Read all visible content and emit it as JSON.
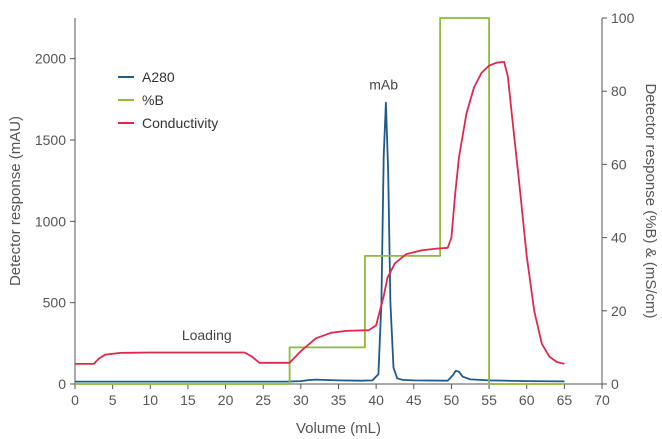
{
  "chart_data": {
    "type": "line",
    "xlabel": "Volume (mL)",
    "ylabel_left": "Detector response (mAU)",
    "ylabel_right": "Detector response (%B) & (mS/cm)",
    "xlim": [
      0,
      70
    ],
    "xticks": [
      0,
      5,
      10,
      15,
      20,
      25,
      30,
      35,
      40,
      45,
      50,
      55,
      60,
      65,
      70
    ],
    "ylim_left": [
      0,
      2250
    ],
    "yticks_left": [
      0,
      500,
      1000,
      1500,
      2000
    ],
    "ylim_right": [
      0,
      100
    ],
    "yticks_right": [
      0,
      20,
      40,
      60,
      80,
      100
    ],
    "grid": false,
    "legend_position": "upper-left",
    "annotations": [
      {
        "text": "Loading",
        "x": 17.5,
        "y_right": 12
      },
      {
        "text": "mAb",
        "x": 41,
        "y_left": 1810
      }
    ],
    "series": [
      {
        "name": "A280",
        "axis": "left",
        "color": "#1f5a8a",
        "points": [
          [
            0,
            15
          ],
          [
            28,
            15
          ],
          [
            30,
            18
          ],
          [
            31,
            24
          ],
          [
            32,
            27
          ],
          [
            33,
            25
          ],
          [
            35,
            22
          ],
          [
            38,
            20
          ],
          [
            39.5,
            22
          ],
          [
            40.3,
            60
          ],
          [
            40.7,
            500
          ],
          [
            41.0,
            1400
          ],
          [
            41.3,
            1730
          ],
          [
            41.6,
            1300
          ],
          [
            41.9,
            500
          ],
          [
            42.3,
            100
          ],
          [
            42.8,
            35
          ],
          [
            43.5,
            25
          ],
          [
            45,
            22
          ],
          [
            49.5,
            20
          ],
          [
            50.2,
            55
          ],
          [
            50.6,
            82
          ],
          [
            51,
            75
          ],
          [
            51.5,
            45
          ],
          [
            52.5,
            28
          ],
          [
            55,
            22
          ],
          [
            60,
            18
          ],
          [
            65,
            16
          ]
        ]
      },
      {
        "name": "%B",
        "axis": "right",
        "color": "#8cbc3a",
        "points": [
          [
            0,
            0
          ],
          [
            28.5,
            0
          ],
          [
            28.5,
            10
          ],
          [
            38.5,
            10
          ],
          [
            38.5,
            35
          ],
          [
            48.5,
            35
          ],
          [
            48.5,
            100
          ],
          [
            55,
            100
          ],
          [
            55,
            0
          ],
          [
            65,
            0
          ]
        ]
      },
      {
        "name": "Conductivity",
        "axis": "right",
        "color": "#e0284c",
        "points": [
          [
            0,
            5.5
          ],
          [
            2.5,
            5.5
          ],
          [
            3.2,
            7
          ],
          [
            4,
            8
          ],
          [
            6,
            8.5
          ],
          [
            10,
            8.6
          ],
          [
            15,
            8.6
          ],
          [
            20,
            8.6
          ],
          [
            22.5,
            8.6
          ],
          [
            23.5,
            7.5
          ],
          [
            24.5,
            5.8
          ],
          [
            28.5,
            5.8
          ],
          [
            30,
            9
          ],
          [
            32,
            12.5
          ],
          [
            34,
            14
          ],
          [
            36,
            14.5
          ],
          [
            39,
            14.7
          ],
          [
            40,
            16
          ],
          [
            41,
            24
          ],
          [
            41.5,
            29
          ],
          [
            42.5,
            33
          ],
          [
            44,
            35.5
          ],
          [
            46,
            36.5
          ],
          [
            48,
            37
          ],
          [
            49.5,
            37.2
          ],
          [
            50,
            40
          ],
          [
            50.5,
            52
          ],
          [
            51,
            62
          ],
          [
            52,
            74
          ],
          [
            53,
            81
          ],
          [
            54,
            85
          ],
          [
            55,
            87
          ],
          [
            56,
            87.8
          ],
          [
            57,
            88
          ],
          [
            57.5,
            84
          ],
          [
            58,
            74
          ],
          [
            59,
            55
          ],
          [
            60,
            35
          ],
          [
            61,
            20
          ],
          [
            62,
            11
          ],
          [
            63,
            7.5
          ],
          [
            64,
            6
          ],
          [
            65,
            5.5
          ]
        ]
      }
    ]
  }
}
